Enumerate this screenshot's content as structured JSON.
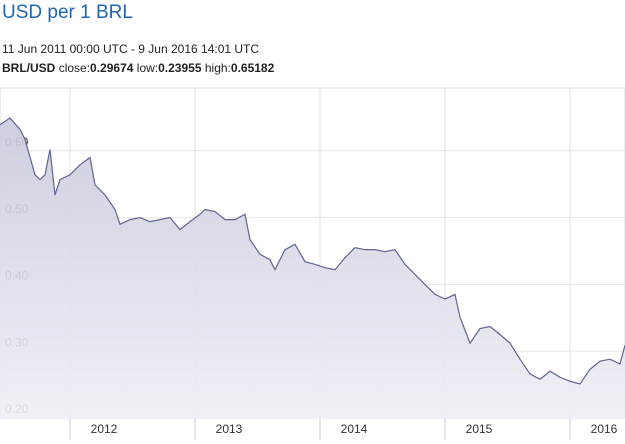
{
  "chart_data": {
    "type": "area",
    "title": "USD per 1 BRL",
    "subtitle": "11 Jun 2011 00:00 UTC - 9 Jun 2016 14:01 UTC",
    "stats": {
      "pair": "BRL/USD",
      "close_label": "close:",
      "close": 0.29674,
      "low_label": "low:",
      "low": 0.23955,
      "high_label": "high:",
      "high": 0.65182
    },
    "series": [
      {
        "name": "BRL/USD",
        "color": "#5f648f",
        "x": [
          2011.44,
          2011.52,
          2011.6,
          2011.64,
          2011.72,
          2011.76,
          2011.8,
          2011.84,
          2011.88,
          2011.92,
          2012.0,
          2012.08,
          2012.16,
          2012.2,
          2012.28,
          2012.36,
          2012.4,
          2012.48,
          2012.56,
          2012.64,
          2012.72,
          2012.8,
          2012.88,
          2012.96,
          2013.04,
          2013.08,
          2013.16,
          2013.24,
          2013.32,
          2013.4,
          2013.44,
          2013.52,
          2013.6,
          2013.64,
          2013.72,
          2013.8,
          2013.88,
          2013.96,
          2014.04,
          2014.12,
          2014.2,
          2014.28,
          2014.36,
          2014.44,
          2014.52,
          2014.6,
          2014.68,
          2014.76,
          2014.84,
          2014.92,
          2015.0,
          2015.08,
          2015.12,
          2015.2,
          2015.28,
          2015.36,
          2015.44,
          2015.52,
          2015.6,
          2015.68,
          2015.76,
          2015.84,
          2015.92,
          2016.0,
          2016.08,
          2016.16,
          2016.24,
          2016.32,
          2016.4,
          2016.44
        ],
        "values": [
          0.627,
          0.637,
          0.62,
          0.605,
          0.552,
          0.545,
          0.552,
          0.59,
          0.522,
          0.545,
          0.552,
          0.567,
          0.578,
          0.537,
          0.522,
          0.5,
          0.478,
          0.485,
          0.488,
          0.482,
          0.485,
          0.488,
          0.47,
          0.482,
          0.493,
          0.5,
          0.497,
          0.485,
          0.485,
          0.493,
          0.455,
          0.433,
          0.425,
          0.41,
          0.44,
          0.448,
          0.422,
          0.418,
          0.413,
          0.41,
          0.428,
          0.443,
          0.44,
          0.44,
          0.437,
          0.44,
          0.418,
          0.403,
          0.388,
          0.373,
          0.366,
          0.373,
          0.339,
          0.3,
          0.322,
          0.325,
          0.313,
          0.3,
          0.276,
          0.254,
          0.246,
          0.258,
          0.249,
          0.243,
          0.239,
          0.261,
          0.273,
          0.276,
          0.269,
          0.297
        ]
      }
    ],
    "xlim": [
      2011.44,
      2016.44
    ],
    "xticks": [
      2012,
      2013,
      2014,
      2015,
      2016
    ],
    "ylim": [
      0.188,
      0.682
    ],
    "yticks": [
      {
        "value": 0.2,
        "label": "0.20"
      },
      {
        "value": 0.3,
        "label": "0.30"
      },
      {
        "value": 0.4,
        "label": "0.40"
      },
      {
        "value": 0.5,
        "label": "0.50"
      },
      {
        "value": 0.6,
        "label": "0.60"
      }
    ],
    "grid": true
  }
}
